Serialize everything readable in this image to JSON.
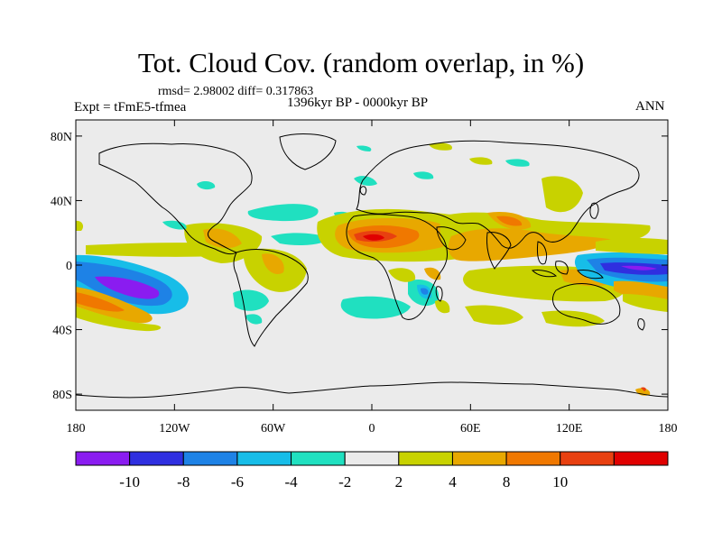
{
  "title": "Tot. Cloud Cov. (random overlap, in %)",
  "stats_line": "rmsd= 2.98002 diff= 0.317863",
  "left_label": "Expt = tFmE5-tfmea",
  "center_label": "1396kyr BP - 0000kyr BP",
  "right_label": "ANN",
  "map": {
    "lon_ticks": [
      "180",
      "120W",
      "60W",
      "0",
      "60E",
      "120E",
      "180"
    ],
    "lat_ticks": [
      "80N",
      "40N",
      "0",
      "40S",
      "80S"
    ],
    "background_color": "#ebebeb"
  },
  "colorbar": {
    "colors": [
      "#8a1cf0",
      "#2f2fe0",
      "#1e82e6",
      "#17bde8",
      "#20e0c0",
      "#ebebeb",
      "#c8d200",
      "#e8a800",
      "#f07800",
      "#e84010",
      "#e00000"
    ],
    "labels": [
      "-10",
      "-8",
      "-6",
      "-4",
      "-2",
      "2",
      "4",
      "8",
      "10"
    ]
  }
}
